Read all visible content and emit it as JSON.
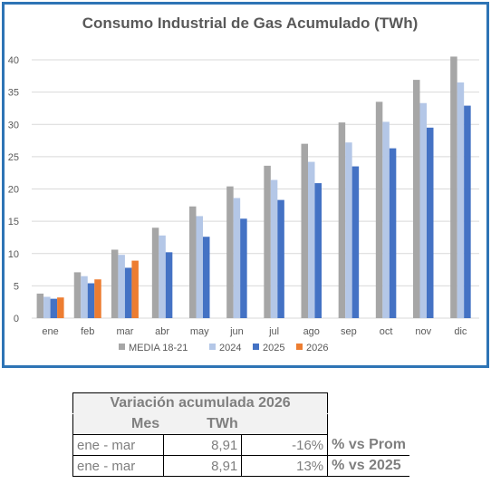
{
  "chart_data": {
    "type": "bar",
    "title": "Consumo Industrial de Gas Acumulado (TWh)",
    "categories": [
      "ene",
      "feb",
      "mar",
      "abr",
      "may",
      "jun",
      "jul",
      "ago",
      "sep",
      "oct",
      "nov",
      "dic"
    ],
    "ylim": [
      0,
      40
    ],
    "yticks": [
      0,
      5,
      10,
      15,
      20,
      25,
      30,
      35,
      40
    ],
    "grid": true,
    "legend_position": "bottom",
    "series": [
      {
        "name": "MEDIA 18-21",
        "color": "#a6a6a6",
        "values": [
          3.8,
          7.1,
          10.6,
          14.0,
          17.3,
          20.4,
          23.6,
          27.0,
          30.3,
          33.5,
          36.9,
          40.5
        ]
      },
      {
        "name": "2024",
        "color": "#b4c7e7",
        "values": [
          3.3,
          6.5,
          9.8,
          12.8,
          15.8,
          18.6,
          21.4,
          24.2,
          27.2,
          30.4,
          33.3,
          36.5
        ]
      },
      {
        "name": "2025",
        "color": "#4472c4",
        "values": [
          3.0,
          5.4,
          7.8,
          10.2,
          12.6,
          15.4,
          18.3,
          20.9,
          23.5,
          26.3,
          29.5,
          32.9
        ]
      },
      {
        "name": "2026",
        "color": "#ed7d31",
        "values": [
          3.2,
          6.0,
          8.9,
          null,
          null,
          null,
          null,
          null,
          null,
          null,
          null,
          null
        ]
      }
    ]
  },
  "table": {
    "title": "Variación acumulada 2026",
    "headers": {
      "mes": "Mes",
      "twh": "TWh"
    },
    "rows": [
      {
        "mes": "ene - mar",
        "twh": "8,91",
        "var": "-16%",
        "note": "% vs Prom"
      },
      {
        "mes": "ene - mar",
        "twh": "8,91",
        "var": "13%",
        "note": "% vs 2025"
      }
    ]
  }
}
